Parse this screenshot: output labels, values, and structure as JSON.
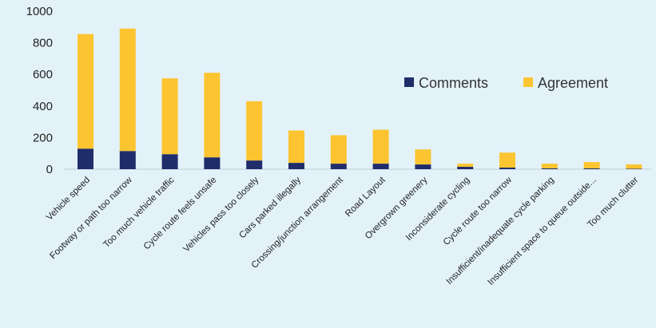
{
  "chart_data": {
    "type": "bar",
    "stacked": true,
    "categories": [
      "Vehicle speed",
      "Footway or path too narrow",
      "Too much vehicle traffic",
      "Cycle route feels unsafe",
      "Vehicles pass too closely",
      "Cars parked illegally",
      "Crossing/junction arrangement",
      "Road Layout",
      "Overgrown greenery",
      "Inconsiderate cycling",
      "Cycle route too narrow",
      "Insufficient/inadequate cycle parking",
      "Insufficient space to queue outside...",
      "Too much clutter"
    ],
    "series": [
      {
        "name": "Comments",
        "color": "#1f2d6b",
        "values": [
          130,
          115,
          95,
          75,
          55,
          40,
          35,
          35,
          30,
          15,
          10,
          5,
          5,
          3
        ]
      },
      {
        "name": "Agreement",
        "color": "#fcc430",
        "values": [
          725,
          775,
          480,
          535,
          375,
          205,
          180,
          215,
          95,
          20,
          95,
          30,
          40,
          27
        ]
      }
    ],
    "ylim": [
      0,
      1000
    ],
    "yticks": [
      0,
      200,
      400,
      600,
      800,
      1000
    ],
    "grid": false,
    "legend_position": "right"
  }
}
